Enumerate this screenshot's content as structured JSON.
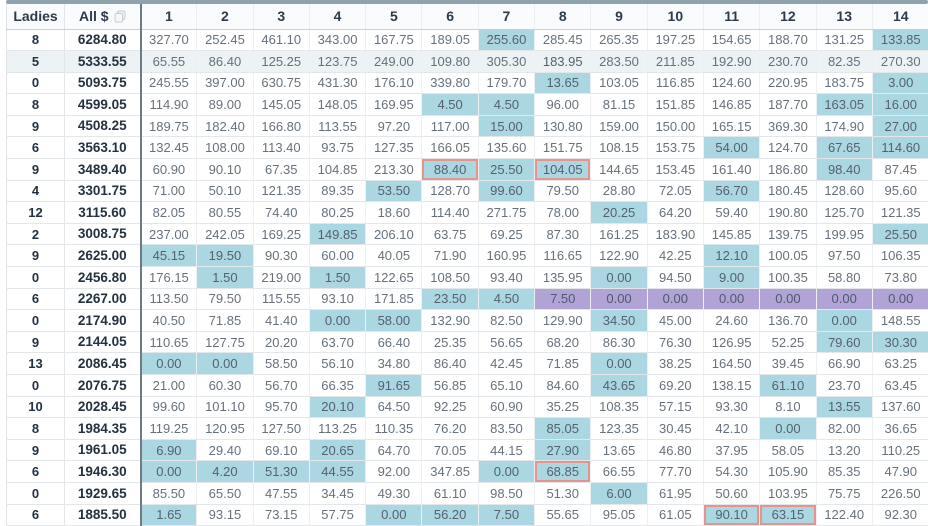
{
  "table": {
    "fixed_headers": [
      "Ladies",
      "All $"
    ],
    "number_columns": [
      "1",
      "2",
      "3",
      "4",
      "5",
      "6",
      "7",
      "8",
      "9",
      "10",
      "11",
      "12",
      "13",
      "14"
    ],
    "rows": [
      {
        "ladies": "8",
        "all": "6284.80",
        "values": [
          "327.70",
          "252.45",
          "461.10",
          "343.00",
          "167.75",
          "189.05",
          "255.60",
          "285.45",
          "265.35",
          "197.25",
          "154.65",
          "188.70",
          "131.25",
          "133.85"
        ],
        "blue": [
          7,
          14
        ],
        "red": [],
        "purple": [],
        "hover": false
      },
      {
        "ladies": "5",
        "all": "5333.55",
        "values": [
          "65.55",
          "86.40",
          "125.25",
          "123.75",
          "249.00",
          "109.80",
          "305.30",
          "183.95",
          "283.50",
          "211.85",
          "192.90",
          "230.70",
          "82.35",
          "270.30"
        ],
        "blue": [
          8
        ],
        "red": [],
        "purple": [],
        "hover": true
      },
      {
        "ladies": "0",
        "all": "5093.75",
        "values": [
          "245.55",
          "397.00",
          "630.75",
          "431.30",
          "176.10",
          "339.80",
          "179.70",
          "13.65",
          "103.05",
          "116.85",
          "124.60",
          "220.95",
          "183.75",
          "3.00"
        ],
        "blue": [
          8,
          14
        ],
        "red": [],
        "purple": [],
        "hover": false
      },
      {
        "ladies": "8",
        "all": "4599.05",
        "values": [
          "114.90",
          "89.00",
          "145.05",
          "148.05",
          "169.95",
          "4.50",
          "4.50",
          "96.00",
          "81.15",
          "151.85",
          "146.85",
          "187.70",
          "163.05",
          "16.00"
        ],
        "blue": [
          6,
          7,
          13,
          14
        ],
        "red": [],
        "purple": [],
        "hover": false
      },
      {
        "ladies": "9",
        "all": "4508.25",
        "values": [
          "189.75",
          "182.40",
          "166.80",
          "113.55",
          "97.20",
          "117.00",
          "15.00",
          "130.80",
          "159.00",
          "150.00",
          "165.15",
          "369.30",
          "174.90",
          "27.00"
        ],
        "blue": [
          7,
          14
        ],
        "red": [],
        "purple": [],
        "hover": false
      },
      {
        "ladies": "6",
        "all": "3563.10",
        "values": [
          "132.45",
          "108.00",
          "113.40",
          "93.75",
          "127.35",
          "166.05",
          "135.60",
          "151.75",
          "108.15",
          "153.75",
          "54.00",
          "124.70",
          "67.65",
          "114.60"
        ],
        "blue": [
          11,
          13,
          14
        ],
        "red": [],
        "purple": [],
        "hover": false
      },
      {
        "ladies": "9",
        "all": "3489.40",
        "values": [
          "60.90",
          "90.10",
          "67.35",
          "104.85",
          "213.30",
          "88.40",
          "25.50",
          "104.05",
          "144.65",
          "153.45",
          "161.40",
          "186.80",
          "98.40",
          "87.45"
        ],
        "blue": [
          6,
          7,
          8,
          13
        ],
        "red": [
          6,
          8
        ],
        "purple": [],
        "hover": false
      },
      {
        "ladies": "4",
        "all": "3301.75",
        "values": [
          "71.00",
          "50.10",
          "121.35",
          "89.35",
          "53.50",
          "128.70",
          "99.60",
          "79.50",
          "28.80",
          "72.05",
          "56.70",
          "180.45",
          "128.60",
          "95.60"
        ],
        "blue": [
          5,
          7,
          11
        ],
        "red": [],
        "purple": [],
        "hover": false
      },
      {
        "ladies": "12",
        "all": "3115.60",
        "values": [
          "82.05",
          "80.55",
          "74.40",
          "80.25",
          "18.60",
          "114.40",
          "271.75",
          "78.00",
          "20.25",
          "64.20",
          "59.40",
          "190.80",
          "125.70",
          "121.35"
        ],
        "blue": [
          9
        ],
        "red": [],
        "purple": [],
        "hover": false
      },
      {
        "ladies": "2",
        "all": "3008.75",
        "values": [
          "237.00",
          "242.05",
          "169.25",
          "149.85",
          "206.10",
          "63.75",
          "69.25",
          "87.30",
          "161.25",
          "183.90",
          "145.85",
          "139.75",
          "199.95",
          "25.50"
        ],
        "blue": [
          4,
          14
        ],
        "red": [],
        "purple": [],
        "hover": false
      },
      {
        "ladies": "9",
        "all": "2625.00",
        "values": [
          "45.15",
          "19.50",
          "90.30",
          "60.00",
          "40.05",
          "71.90",
          "160.95",
          "116.65",
          "122.90",
          "42.25",
          "12.10",
          "100.05",
          "97.50",
          "106.35"
        ],
        "blue": [
          1,
          2,
          11
        ],
        "red": [],
        "purple": [],
        "hover": false
      },
      {
        "ladies": "0",
        "all": "2456.80",
        "values": [
          "176.15",
          "1.50",
          "219.00",
          "1.50",
          "122.65",
          "108.50",
          "93.40",
          "135.95",
          "0.00",
          "94.50",
          "9.00",
          "100.35",
          "58.80",
          "73.80"
        ],
        "blue": [
          2,
          4,
          9,
          11
        ],
        "red": [],
        "purple": [],
        "hover": false
      },
      {
        "ladies": "6",
        "all": "2267.00",
        "values": [
          "113.50",
          "79.50",
          "115.55",
          "93.10",
          "171.85",
          "23.50",
          "4.50",
          "7.50",
          "0.00",
          "0.00",
          "0.00",
          "0.00",
          "0.00",
          "0.00"
        ],
        "blue": [
          6,
          7
        ],
        "red": [],
        "purple": [
          8,
          9,
          10,
          11,
          12,
          13,
          14
        ],
        "hover": false
      },
      {
        "ladies": "0",
        "all": "2174.90",
        "values": [
          "40.50",
          "71.85",
          "41.40",
          "0.00",
          "58.00",
          "132.90",
          "82.50",
          "129.90",
          "34.50",
          "45.00",
          "24.60",
          "136.70",
          "0.00",
          "148.55"
        ],
        "blue": [
          4,
          5,
          9,
          13
        ],
        "red": [],
        "purple": [],
        "hover": false
      },
      {
        "ladies": "9",
        "all": "2144.05",
        "values": [
          "110.65",
          "127.75",
          "20.20",
          "63.70",
          "66.40",
          "25.35",
          "56.65",
          "68.20",
          "86.30",
          "76.30",
          "126.95",
          "52.25",
          "79.60",
          "30.30"
        ],
        "blue": [
          13,
          14
        ],
        "red": [],
        "purple": [],
        "hover": false
      },
      {
        "ladies": "13",
        "all": "2086.45",
        "values": [
          "0.00",
          "0.00",
          "58.50",
          "56.10",
          "34.80",
          "86.40",
          "42.45",
          "71.85",
          "0.00",
          "38.25",
          "164.50",
          "39.45",
          "66.90",
          "63.25"
        ],
        "blue": [
          1,
          2,
          9
        ],
        "red": [],
        "purple": [],
        "hover": false
      },
      {
        "ladies": "0",
        "all": "2076.75",
        "values": [
          "21.00",
          "60.30",
          "56.70",
          "66.35",
          "91.65",
          "56.85",
          "65.10",
          "84.60",
          "43.65",
          "69.20",
          "138.15",
          "61.10",
          "23.70",
          "63.45"
        ],
        "blue": [
          5,
          9,
          12
        ],
        "red": [],
        "purple": [],
        "hover": false
      },
      {
        "ladies": "10",
        "all": "2028.45",
        "values": [
          "99.60",
          "101.10",
          "95.70",
          "20.10",
          "64.50",
          "92.25",
          "60.90",
          "35.25",
          "108.35",
          "57.15",
          "93.30",
          "8.10",
          "13.55",
          "137.60"
        ],
        "blue": [
          4,
          13
        ],
        "red": [],
        "purple": [],
        "hover": false
      },
      {
        "ladies": "8",
        "all": "1984.35",
        "values": [
          "119.25",
          "120.95",
          "127.50",
          "113.25",
          "110.35",
          "76.20",
          "83.50",
          "85.05",
          "123.35",
          "30.45",
          "42.10",
          "0.00",
          "82.00",
          "36.65"
        ],
        "blue": [
          8,
          12
        ],
        "red": [],
        "purple": [],
        "hover": false
      },
      {
        "ladies": "9",
        "all": "1961.05",
        "values": [
          "6.90",
          "29.40",
          "69.10",
          "20.65",
          "64.70",
          "70.05",
          "44.15",
          "27.90",
          "13.65",
          "46.80",
          "37.95",
          "58.05",
          "13.20",
          "110.25"
        ],
        "blue": [
          1,
          4,
          8
        ],
        "red": [],
        "purple": [],
        "hover": false
      },
      {
        "ladies": "6",
        "all": "1946.30",
        "values": [
          "0.00",
          "4.20",
          "51.30",
          "44.55",
          "92.00",
          "347.85",
          "0.00",
          "68.85",
          "66.55",
          "77.70",
          "54.30",
          "105.90",
          "85.35",
          "47.90"
        ],
        "blue": [
          1,
          2,
          3,
          4,
          7,
          8
        ],
        "red": [
          8
        ],
        "purple": [],
        "hover": false
      },
      {
        "ladies": "0",
        "all": "1929.65",
        "values": [
          "85.50",
          "65.50",
          "47.55",
          "34.45",
          "49.30",
          "61.10",
          "98.50",
          "51.30",
          "6.00",
          "61.95",
          "50.60",
          "103.95",
          "75.75",
          "226.50"
        ],
        "blue": [
          9
        ],
        "red": [],
        "purple": [],
        "hover": false
      },
      {
        "ladies": "6",
        "all": "1885.50",
        "values": [
          "1.65",
          "93.15",
          "73.15",
          "57.75",
          "0.00",
          "56.20",
          "7.50",
          "55.65",
          "95.05",
          "61.05",
          "90.10",
          "63.15",
          "122.40",
          "92.30"
        ],
        "blue": [
          1,
          5,
          6,
          7,
          11,
          12
        ],
        "red": [
          11,
          12
        ],
        "purple": [],
        "hover": false
      }
    ]
  },
  "colors": {
    "highlight_blue": "#abd7e3",
    "highlight_purple": "#b1a3d6",
    "red_border": "#e5938d",
    "hover_row": "#edf2f5",
    "column_separator": "#6e7a84",
    "top_strip": "#8fa3ae"
  },
  "icons": {
    "copy_icon": "copy-icon"
  }
}
